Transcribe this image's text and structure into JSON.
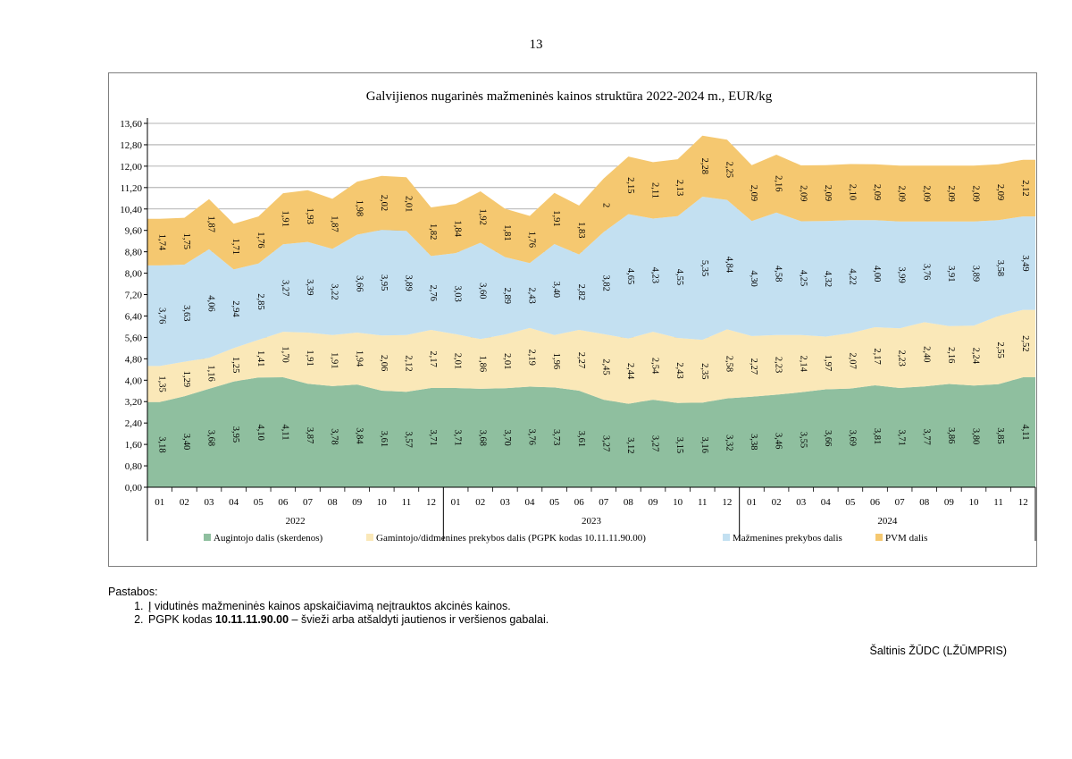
{
  "page_number": "13",
  "chart_data": {
    "type": "area",
    "stacked": true,
    "title": "Galvijienos nugarinės mažmeninės kainos struktūra 2022-2024 m., EUR/kg",
    "months": [
      "01",
      "02",
      "03",
      "04",
      "05",
      "06",
      "07",
      "08",
      "09",
      "10",
      "11",
      "12",
      "01",
      "02",
      "03",
      "04",
      "05",
      "06",
      "07",
      "08",
      "09",
      "10",
      "11",
      "12",
      "01",
      "02",
      "03",
      "04",
      "05",
      "06",
      "07",
      "08",
      "09",
      "10",
      "11",
      "12"
    ],
    "years": [
      "2022",
      "2023",
      "2024"
    ],
    "ylim": [
      0,
      13.6
    ],
    "y_ticks": [
      "0,00",
      "0,80",
      "1,60",
      "2,40",
      "3,20",
      "4,00",
      "4,80",
      "5,60",
      "6,40",
      "7,20",
      "8,00",
      "8,80",
      "9,60",
      "10,40",
      "11,20",
      "12,00",
      "12,80",
      "13,60"
    ],
    "legend_position": "bottom",
    "series": [
      {
        "name": "Augintojo dalis (skerdenos)",
        "color": "#8fbf9f",
        "values": [
          3.18,
          3.4,
          3.68,
          3.95,
          4.1,
          4.11,
          3.87,
          3.78,
          3.84,
          3.61,
          3.57,
          3.71,
          3.71,
          3.68,
          3.7,
          3.76,
          3.73,
          3.61,
          3.27,
          3.12,
          3.27,
          3.15,
          3.16,
          3.32,
          3.38,
          3.46,
          3.55,
          3.66,
          3.69,
          3.81,
          3.71,
          3.77,
          3.86,
          3.8,
          3.85,
          4.11
        ],
        "labels": [
          "3,18",
          "3,40",
          "3,68",
          "3,95",
          "4,10",
          "4,11",
          "3,87",
          "3,78",
          "3,84",
          "3,61",
          "3,57",
          "3,71",
          "3,71",
          "3,68",
          "3,70",
          "3,76",
          "3,73",
          "3,61",
          "3,27",
          "3,12",
          "3,27",
          "3,15",
          "3,16",
          "3,32",
          "3,38",
          "3,46",
          "3,55",
          "3,66",
          "3,69",
          "3,81",
          "3,71",
          "3,77",
          "3,86",
          "3,80",
          "3,85",
          "4,11"
        ]
      },
      {
        "name": "Gamintojo/didmenines prekybos dalis (PGPK kodas 10.11.11.90.00)",
        "color": "#fae8b8",
        "values": [
          1.35,
          1.29,
          1.16,
          1.25,
          1.41,
          1.7,
          1.91,
          1.91,
          1.94,
          2.06,
          2.12,
          2.17,
          2.01,
          1.86,
          2.01,
          2.19,
          1.96,
          2.27,
          2.45,
          2.44,
          2.54,
          2.43,
          2.35,
          2.58,
          2.27,
          2.23,
          2.14,
          1.97,
          2.07,
          2.17,
          2.23,
          2.4,
          2.16,
          2.24,
          2.55,
          2.52
        ],
        "labels": [
          "1,35",
          "1,29",
          "1,16",
          "1,25",
          "1,41",
          "1,70",
          "1,91",
          "1,91",
          "1,94",
          "2,06",
          "2,12",
          "2,17",
          "2,01",
          "1,86",
          "2,01",
          "2,19",
          "1,96",
          "2,27",
          "2,45",
          "2,44",
          "2,54",
          "2,43",
          "2,35",
          "2,58",
          "2,27",
          "2,23",
          "2,14",
          "1,97",
          "2,07",
          "2,17",
          "2,23",
          "2,40",
          "2,16",
          "2,24",
          "2,55",
          "2,52"
        ]
      },
      {
        "name": "Mažmenines prekybos dalis",
        "color": "#c3e0f1",
        "values": [
          3.76,
          3.63,
          4.06,
          2.94,
          2.85,
          3.27,
          3.39,
          3.22,
          3.66,
          3.95,
          3.89,
          2.76,
          3.03,
          3.6,
          2.89,
          2.43,
          3.4,
          2.82,
          3.82,
          4.65,
          4.23,
          4.55,
          5.35,
          4.84,
          4.3,
          4.58,
          4.25,
          4.32,
          4.22,
          4.0,
          3.99,
          3.76,
          3.91,
          3.89,
          3.58,
          3.49
        ],
        "labels": [
          "3,76",
          "3,63",
          "4,06",
          "2,94",
          "2,85",
          "3,27",
          "3,39",
          "3,22",
          "3,66",
          "3,95",
          "3,89",
          "2,76",
          "3,03",
          "3,60",
          "2,89",
          "2,43",
          "3,40",
          "2,82",
          "3,82",
          "4,65",
          "4,23",
          "4,55",
          "5,35",
          "4,84",
          "4,30",
          "4,58",
          "4,25",
          "4,32",
          "4,22",
          "4,00",
          "3,99",
          "3,76",
          "3,91",
          "3,89",
          "3,58",
          "3,49"
        ]
      },
      {
        "name": "PVM dalis",
        "color": "#f5c870",
        "values": [
          1.74,
          1.75,
          1.87,
          1.71,
          1.76,
          1.91,
          1.93,
          1.87,
          1.98,
          2.02,
          2.01,
          1.82,
          1.84,
          1.92,
          1.81,
          1.76,
          1.91,
          1.83,
          2.0,
          2.15,
          2.11,
          2.13,
          2.28,
          2.25,
          2.09,
          2.16,
          2.09,
          2.09,
          2.1,
          2.09,
          2.09,
          2.09,
          2.09,
          2.09,
          2.09,
          2.12
        ],
        "labels": [
          "1,74",
          "1,75",
          "1,87",
          "1,71",
          "1,76",
          "1,91",
          "1,93",
          "1,87",
          "1,98",
          "2,02",
          "2,01",
          "1,82",
          "1,84",
          "1,92",
          "1,81",
          "1,76",
          "1,91",
          "1,83",
          "2",
          "2,15",
          "2,11",
          "2,13",
          "2,28",
          "2,25",
          "2,09",
          "2,16",
          "2,09",
          "2,09",
          "2,10",
          "2,09",
          "2,09",
          "2,09",
          "2,09",
          "2,09",
          "2,09",
          "2,12"
        ]
      }
    ]
  },
  "notes": {
    "label": "Pastabos:",
    "items": [
      {
        "number": "1.",
        "text": "Į vidutinės mažmeninės kainos apskaičiavimą neįtrauktos akcinės kainos."
      },
      {
        "number": "2.",
        "prefix": "PGPK kodas ",
        "code": "10.11.11.90.00",
        "suffix": " – švieži arba atšaldyti jautienos ir veršienos gabalai."
      }
    ]
  },
  "source": "Šaltinis ŽŪDC (LŽŪMPRIS)"
}
